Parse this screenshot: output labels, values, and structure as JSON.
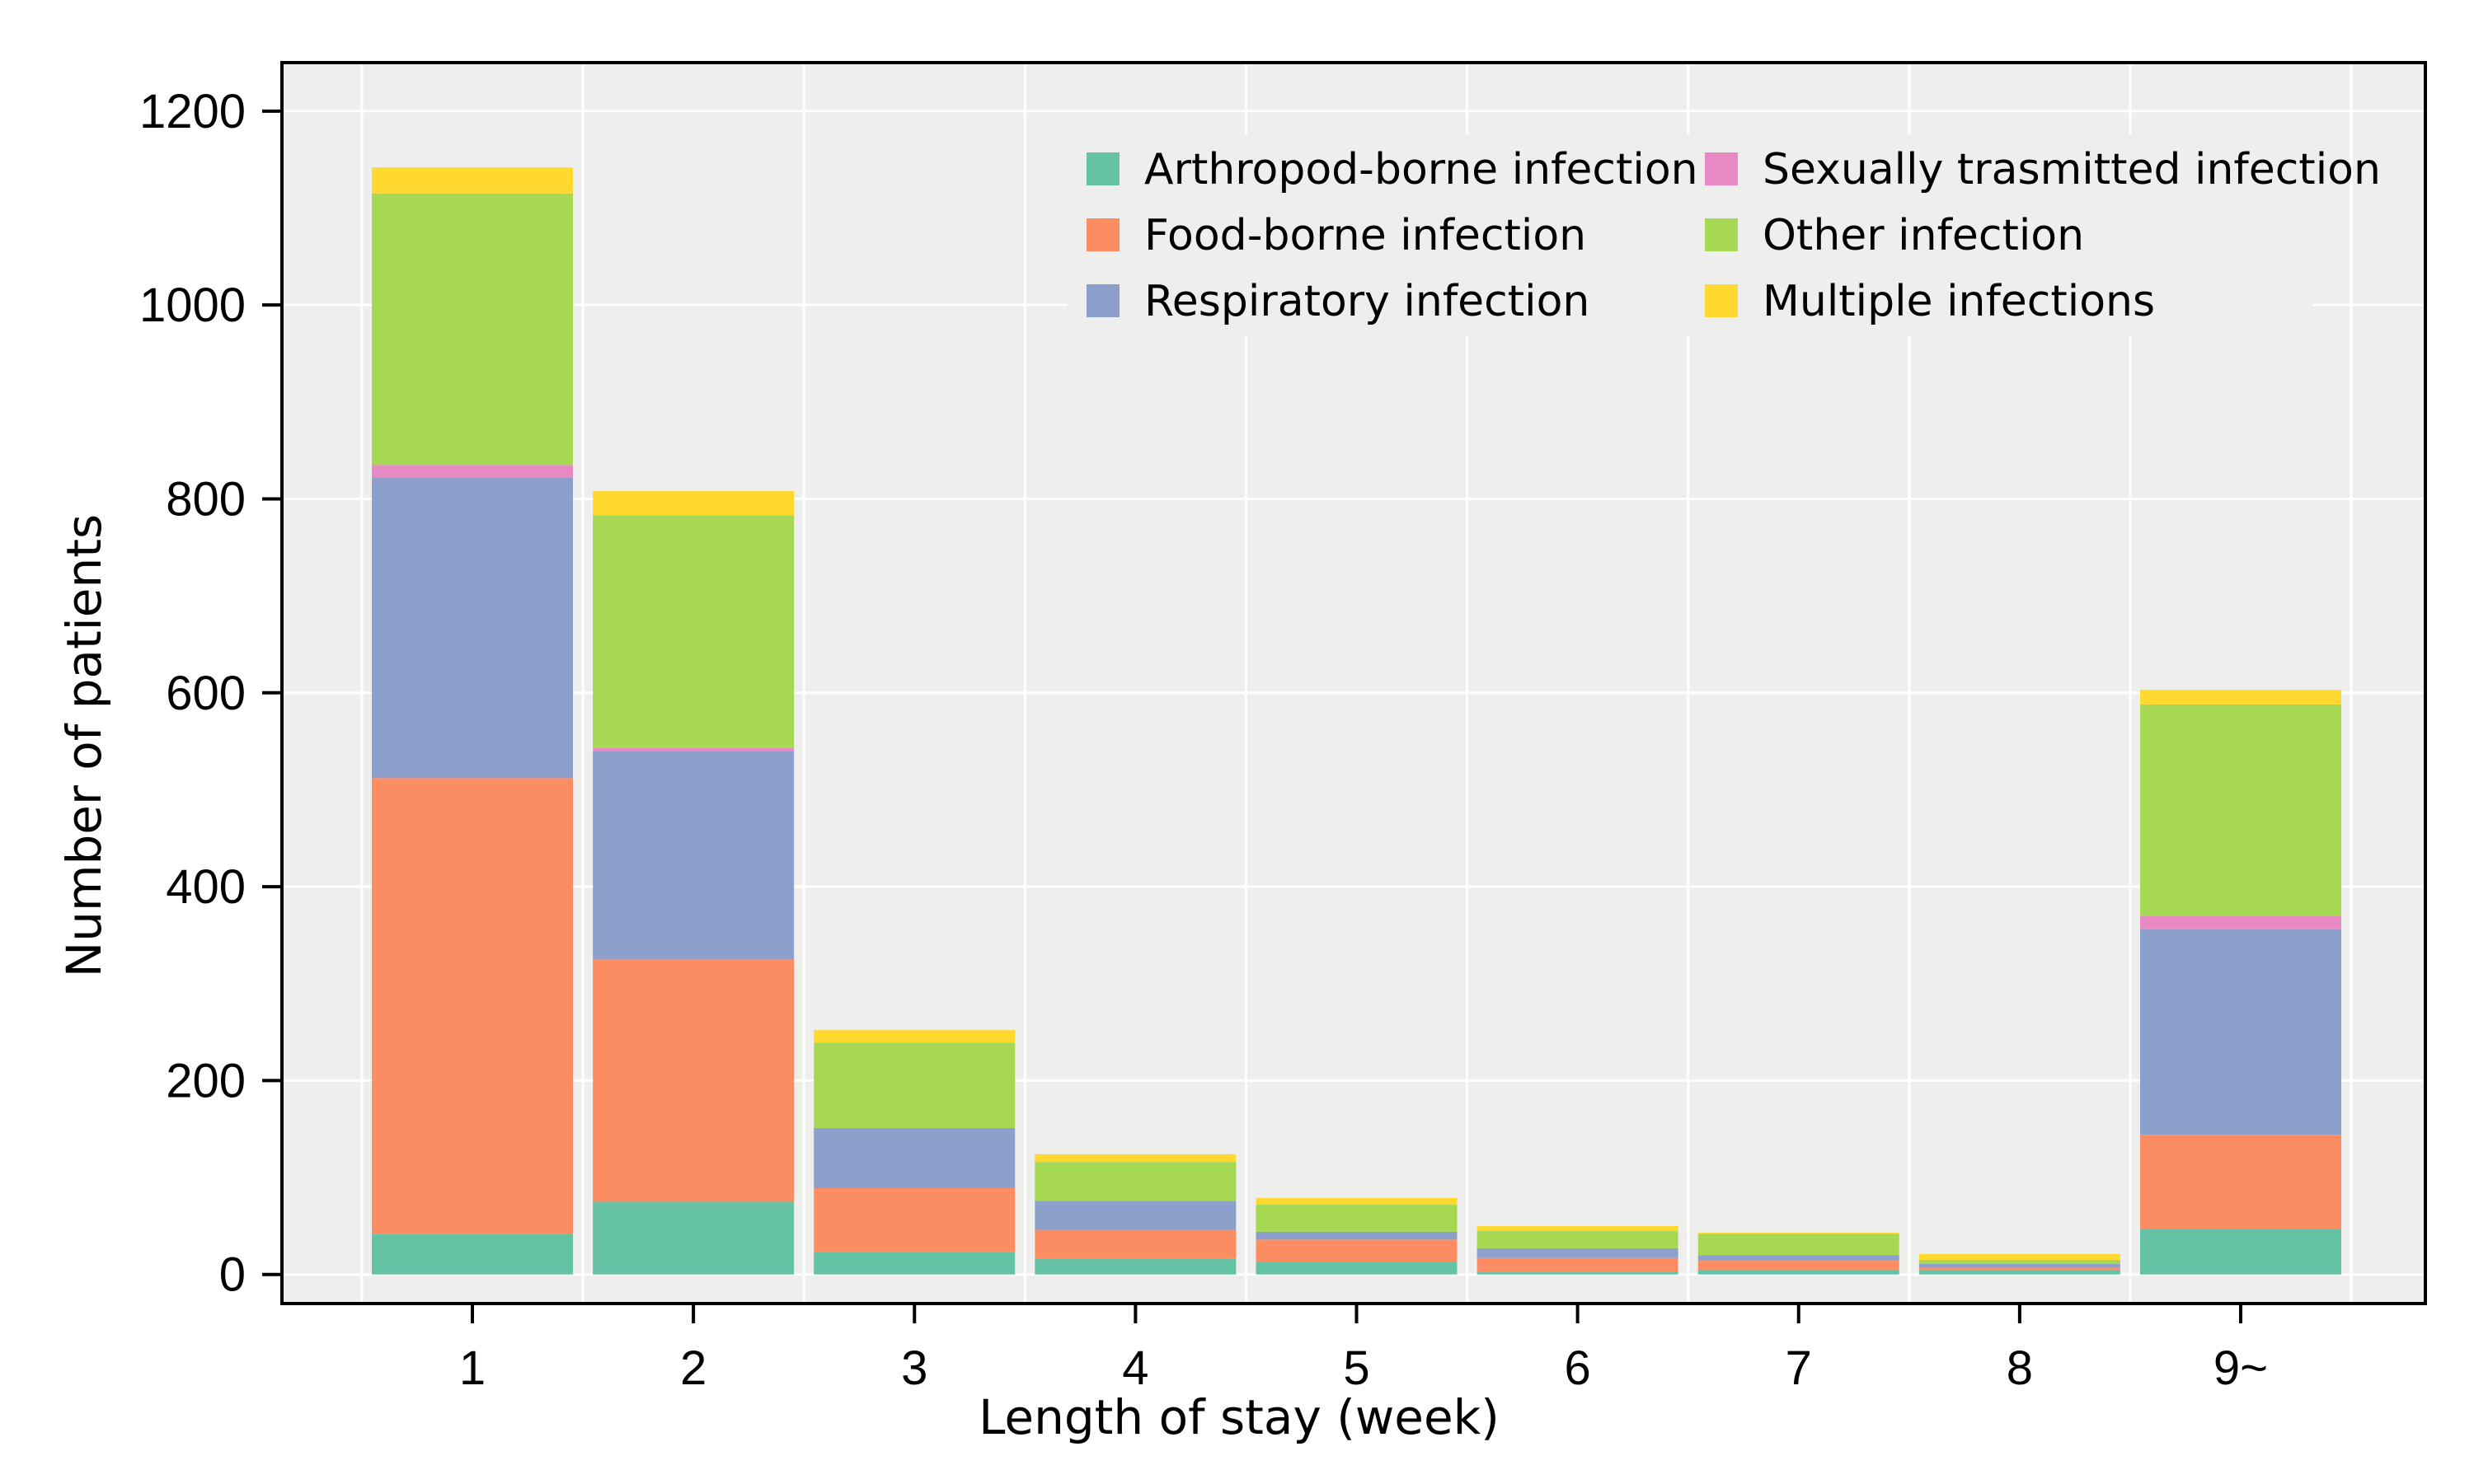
{
  "chart_data": {
    "type": "bar",
    "stacked": true,
    "title": "",
    "xlabel": "Length of stay (week)",
    "ylabel": "Number of patients",
    "ylim": [
      -30,
      1250
    ],
    "yticks": [
      "0",
      "200",
      "400",
      "600",
      "800",
      "1000",
      "1200"
    ],
    "ytick_values": [
      0,
      200,
      400,
      600,
      800,
      1000,
      1200
    ],
    "categories": [
      "1",
      "2",
      "3",
      "4",
      "5",
      "6",
      "7",
      "8",
      "9~"
    ],
    "grid": true,
    "legend_position": "top-right",
    "series": [
      {
        "name": "Arthropod-borne infection",
        "color": "#66C2A5",
        "values": [
          42,
          75,
          23,
          16,
          13,
          3,
          5,
          4,
          47
        ]
      },
      {
        "name": "Sexually trasmitted infection",
        "color": "#E78AC3",
        "values": [
          13,
          3,
          0,
          0,
          0,
          0,
          0,
          0,
          14
        ]
      },
      {
        "name": "Food-borne infection",
        "color": "#FC8D62",
        "values": [
          470,
          250,
          66,
          30,
          23,
          14,
          10,
          3,
          97
        ]
      },
      {
        "name": "Other infection",
        "color": "#A6D854",
        "values": [
          280,
          240,
          88,
          40,
          28,
          18,
          22,
          4,
          218
        ]
      },
      {
        "name": "Respiratory infection",
        "color": "#8DA0CB",
        "values": [
          310,
          215,
          62,
          30,
          8,
          10,
          5,
          4,
          212
        ]
      },
      {
        "name": "Multiple infections",
        "color": "#FFD92F",
        "values": [
          27,
          25,
          13,
          8,
          7,
          5,
          1,
          6,
          15
        ]
      }
    ],
    "stack_order": [
      "Arthropod-borne infection",
      "Food-borne infection",
      "Respiratory infection",
      "Sexually trasmitted infection",
      "Other infection",
      "Multiple infections"
    ],
    "legend_order": [
      "Arthropod-borne infection",
      "Sexually trasmitted infection",
      "Food-borne infection",
      "Other infection",
      "Respiratory infection",
      "Multiple infections"
    ]
  },
  "colors": {
    "panel_background": "#EEEEEC",
    "grid": "#FFFFFF",
    "frame": "#000000"
  }
}
